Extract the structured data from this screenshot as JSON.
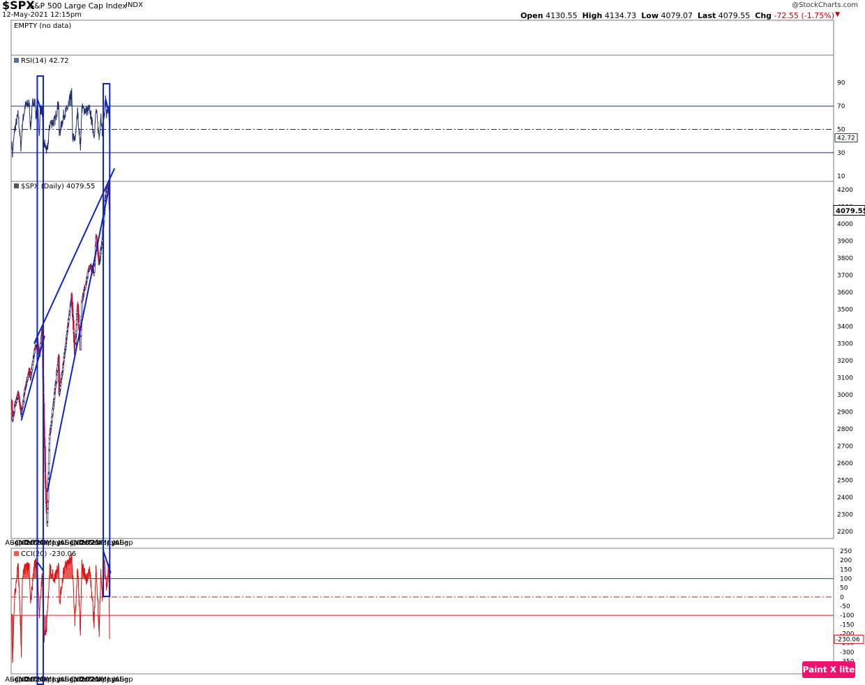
{
  "header": {
    "symbol": "$SPX",
    "description": "S&P 500 Large Cap Index",
    "exchange": "INDX",
    "datetime": "12-May-2021 12:15pm",
    "brand": "@StockCharts.com",
    "quote": {
      "open_label": "Open",
      "open": "4130.55",
      "high_label": "High",
      "high": "4134.73",
      "low_label": "Low",
      "low": "4079.07",
      "last_label": "Last",
      "last": "4079.55",
      "chg_label": "Chg",
      "chg": "-72.55 (-1.75%)"
    }
  },
  "watermark": "Paint X lite",
  "colors": {
    "frame": "#777777",
    "annotation": "#0b24c8",
    "rsi_line": "#1f2f6e",
    "rsi_fill": "#5a6e9e",
    "cci_line": "#dd1111",
    "cci_fill": "#ea5a5a",
    "price_up": "#1a1a70",
    "price_down": "#c8102e"
  },
  "chart_data": [
    {
      "type": "line",
      "panel": "empty",
      "title": "EMPTY (no data)"
    },
    {
      "type": "line",
      "panel": "rsi",
      "title": "RSI(14) 42.72",
      "last_value": "42.72",
      "y_ticks": [
        "90",
        "70",
        "50",
        "30",
        "10"
      ],
      "reference_lines": [
        70,
        50,
        30
      ],
      "ylim": [
        0,
        100
      ],
      "keypoints": [
        {
          "x": "2019-08-01",
          "y": 38
        },
        {
          "x": "2019-08-05",
          "y": 28
        },
        {
          "x": "2019-08-20",
          "y": 50
        },
        {
          "x": "2019-09-12",
          "y": 63
        },
        {
          "x": "2019-10-01",
          "y": 34
        },
        {
          "x": "2019-10-10",
          "y": 55
        },
        {
          "x": "2019-10-28",
          "y": 70
        },
        {
          "x": "2019-11-25",
          "y": 72
        },
        {
          "x": "2019-12-03",
          "y": 52
        },
        {
          "x": "2019-12-20",
          "y": 75
        },
        {
          "x": "2020-01-02",
          "y": 74
        },
        {
          "x": "2020-01-08",
          "y": 60
        },
        {
          "x": "2020-01-17",
          "y": 76
        },
        {
          "x": "2020-01-31",
          "y": 45
        },
        {
          "x": "2020-02-06",
          "y": 68
        },
        {
          "x": "2020-02-19",
          "y": 66
        },
        {
          "x": "2020-02-25",
          "y": 30
        },
        {
          "x": "2020-03-05",
          "y": 38
        },
        {
          "x": "2020-03-23",
          "y": 30
        },
        {
          "x": "2020-04-10",
          "y": 55
        },
        {
          "x": "2020-05-12",
          "y": 57
        },
        {
          "x": "2020-06-08",
          "y": 74
        },
        {
          "x": "2020-06-11",
          "y": 45
        },
        {
          "x": "2020-07-10",
          "y": 62
        },
        {
          "x": "2020-08-03",
          "y": 67
        },
        {
          "x": "2020-09-02",
          "y": 82
        },
        {
          "x": "2020-09-08",
          "y": 44
        },
        {
          "x": "2020-09-23",
          "y": 40
        },
        {
          "x": "2020-10-12",
          "y": 65
        },
        {
          "x": "2020-10-30",
          "y": 35
        },
        {
          "x": "2020-11-09",
          "y": 68
        },
        {
          "x": "2020-12-08",
          "y": 66
        },
        {
          "x": "2020-12-31",
          "y": 67
        },
        {
          "x": "2021-01-29",
          "y": 45
        },
        {
          "x": "2021-02-12",
          "y": 67
        },
        {
          "x": "2021-03-04",
          "y": 42
        },
        {
          "x": "2021-03-15",
          "y": 64
        },
        {
          "x": "2021-03-25",
          "y": 47
        },
        {
          "x": "2021-04-16",
          "y": 76
        },
        {
          "x": "2021-04-22",
          "y": 62
        },
        {
          "x": "2021-05-07",
          "y": 66
        },
        {
          "x": "2021-05-12",
          "y": 42.72
        }
      ]
    },
    {
      "type": "candlestick",
      "panel": "price",
      "title": "$SPX (Daily) 4079.55",
      "last_value": "4079.55",
      "y_ticks": [
        "4200",
        "4100",
        "4000",
        "3900",
        "3800",
        "3700",
        "3600",
        "3500",
        "3400",
        "3300",
        "3200",
        "3100",
        "3000",
        "2900",
        "2800",
        "2700",
        "2600",
        "2500",
        "2400",
        "2300",
        "2200"
      ],
      "ylim": [
        2150,
        4260
      ],
      "keypoints": [
        {
          "x": "2019-08-01",
          "y": 2950
        },
        {
          "x": "2019-08-05",
          "y": 2845
        },
        {
          "x": "2019-08-20",
          "y": 2930
        },
        {
          "x": "2019-09-12",
          "y": 3010
        },
        {
          "x": "2019-10-03",
          "y": 2890
        },
        {
          "x": "2019-10-28",
          "y": 3040
        },
        {
          "x": "2019-11-25",
          "y": 3135
        },
        {
          "x": "2019-12-03",
          "y": 3095
        },
        {
          "x": "2019-12-27",
          "y": 3240
        },
        {
          "x": "2020-01-17",
          "y": 3330
        },
        {
          "x": "2020-01-31",
          "y": 3225
        },
        {
          "x": "2020-02-19",
          "y": 3386
        },
        {
          "x": "2020-02-28",
          "y": 2955
        },
        {
          "x": "2020-03-12",
          "y": 2480
        },
        {
          "x": "2020-03-23",
          "y": 2237
        },
        {
          "x": "2020-04-08",
          "y": 2750
        },
        {
          "x": "2020-04-30",
          "y": 2912
        },
        {
          "x": "2020-06-08",
          "y": 3232
        },
        {
          "x": "2020-06-11",
          "y": 3002
        },
        {
          "x": "2020-07-22",
          "y": 3276
        },
        {
          "x": "2020-09-02",
          "y": 3580
        },
        {
          "x": "2020-09-23",
          "y": 3237
        },
        {
          "x": "2020-10-12",
          "y": 3534
        },
        {
          "x": "2020-10-30",
          "y": 3270
        },
        {
          "x": "2020-11-09",
          "y": 3550
        },
        {
          "x": "2020-12-31",
          "y": 3756
        },
        {
          "x": "2021-01-29",
          "y": 3714
        },
        {
          "x": "2021-02-12",
          "y": 3934
        },
        {
          "x": "2021-03-04",
          "y": 3768
        },
        {
          "x": "2021-03-25",
          "y": 3909
        },
        {
          "x": "2021-04-16",
          "y": 4185
        },
        {
          "x": "2021-05-07",
          "y": 4232
        },
        {
          "x": "2021-05-12",
          "y": 4079.55
        }
      ]
    },
    {
      "type": "area",
      "panel": "cci",
      "title": "CCI(20) -230.06",
      "last_value": "-230.06",
      "y_ticks": [
        "250",
        "200",
        "150",
        "100",
        "50",
        "0",
        "-50",
        "-100",
        "-150",
        "-200",
        "-250",
        "-300",
        "-350"
      ],
      "reference_lines": [
        100,
        0,
        -100
      ],
      "ylim": [
        -380,
        265
      ],
      "keypoints": [
        {
          "x": "2019-08-01",
          "y": -100
        },
        {
          "x": "2019-08-05",
          "y": -355
        },
        {
          "x": "2019-08-20",
          "y": 0
        },
        {
          "x": "2019-09-12",
          "y": 180
        },
        {
          "x": "2019-10-03",
          "y": -300
        },
        {
          "x": "2019-10-10",
          "y": 100
        },
        {
          "x": "2019-10-28",
          "y": 160
        },
        {
          "x": "2019-11-25",
          "y": 160
        },
        {
          "x": "2019-12-03",
          "y": -50
        },
        {
          "x": "2019-12-27",
          "y": 170
        },
        {
          "x": "2020-01-17",
          "y": 190
        },
        {
          "x": "2020-01-31",
          "y": -90
        },
        {
          "x": "2020-02-19",
          "y": 135
        },
        {
          "x": "2020-02-27",
          "y": -240
        },
        {
          "x": "2020-03-20",
          "y": -150
        },
        {
          "x": "2020-04-10",
          "y": 150
        },
        {
          "x": "2020-05-12",
          "y": 100
        },
        {
          "x": "2020-06-08",
          "y": 190
        },
        {
          "x": "2020-06-12",
          "y": -50
        },
        {
          "x": "2020-07-10",
          "y": 150
        },
        {
          "x": "2020-09-02",
          "y": 220
        },
        {
          "x": "2020-09-24",
          "y": -140
        },
        {
          "x": "2020-10-12",
          "y": 170
        },
        {
          "x": "2020-10-30",
          "y": -200
        },
        {
          "x": "2020-11-09",
          "y": 170
        },
        {
          "x": "2020-12-08",
          "y": 100
        },
        {
          "x": "2020-12-31",
          "y": 150
        },
        {
          "x": "2021-01-29",
          "y": -140
        },
        {
          "x": "2021-02-12",
          "y": 180
        },
        {
          "x": "2021-03-04",
          "y": -210
        },
        {
          "x": "2021-03-15",
          "y": 150
        },
        {
          "x": "2021-03-25",
          "y": -20
        },
        {
          "x": "2021-04-01",
          "y": 250
        },
        {
          "x": "2021-04-22",
          "y": 50
        },
        {
          "x": "2021-05-07",
          "y": 175
        },
        {
          "x": "2021-05-12",
          "y": -230.06
        }
      ]
    }
  ],
  "x_axis": {
    "labels": [
      {
        "date": "2019-08-01",
        "text": "Aug",
        "bold": false
      },
      {
        "date": "2019-09-01",
        "text": "Sep",
        "bold": false
      },
      {
        "date": "2019-10-01",
        "text": "Oct",
        "bold": false
      },
      {
        "date": "2019-11-01",
        "text": "Nov",
        "bold": false
      },
      {
        "date": "2019-12-01",
        "text": "Dec",
        "bold": false
      },
      {
        "date": "2020-01-01",
        "text": "2020",
        "bold": true
      },
      {
        "date": "2020-02-01",
        "text": "Feb",
        "bold": false
      },
      {
        "date": "2020-03-01",
        "text": "Mar",
        "bold": false
      },
      {
        "date": "2020-04-01",
        "text": "Apr",
        "bold": false
      },
      {
        "date": "2020-05-01",
        "text": "May",
        "bold": false
      },
      {
        "date": "2020-06-01",
        "text": "Jun",
        "bold": false
      },
      {
        "date": "2020-07-01",
        "text": "Jul",
        "bold": false
      },
      {
        "date": "2020-08-01",
        "text": "Aug",
        "bold": false
      },
      {
        "date": "2020-09-01",
        "text": "Sep",
        "bold": false
      },
      {
        "date": "2020-10-01",
        "text": "Oct",
        "bold": false
      },
      {
        "date": "2020-11-01",
        "text": "Nov",
        "bold": false
      },
      {
        "date": "2020-12-01",
        "text": "Dec",
        "bold": false
      },
      {
        "date": "2021-01-01",
        "text": "2021",
        "bold": true
      },
      {
        "date": "2021-02-01",
        "text": "Feb",
        "bold": false
      },
      {
        "date": "2021-03-01",
        "text": "Mar",
        "bold": false
      },
      {
        "date": "2021-04-01",
        "text": "Apr",
        "bold": false
      },
      {
        "date": "2021-05-01",
        "text": "May",
        "bold": false
      },
      {
        "date": "2021-06-01",
        "text": "Jun",
        "bold": false
      },
      {
        "date": "2021-07-01",
        "text": "Jul",
        "bold": false
      },
      {
        "date": "2021-08-01",
        "text": "Aug",
        "bold": false
      },
      {
        "date": "2021-09-01",
        "text": "Sep",
        "bold": false
      }
    ]
  },
  "annotations": {
    "trendlines_price": [
      {
        "from": {
          "x": "2019-10-03",
          "y": 2850
        },
        "to": {
          "x": "2020-03-06",
          "y": 3345
        }
      },
      {
        "from": {
          "x": "2019-12-27",
          "y": 3300
        },
        "to": {
          "x": "2021-06-14",
          "y": 4325
        }
      },
      {
        "from": {
          "x": "2020-03-24",
          "y": 2432
        },
        "to": {
          "x": "2021-05-13",
          "y": 4233
        }
      }
    ],
    "highlight_boxes": [
      {
        "from": "2020-01-17",
        "to": "2020-02-26"
      },
      {
        "from": "2021-03-31",
        "to": "2021-05-13"
      }
    ],
    "trendlines_rsi": [
      {
        "from": {
          "x": "2020-01-18",
          "y": 76
        },
        "to": {
          "x": "2020-02-24",
          "y": 62
        }
      },
      {
        "from": {
          "x": "2021-04-16",
          "y": 76
        },
        "to": {
          "x": "2021-05-12",
          "y": 62
        }
      }
    ],
    "trendlines_cci": [
      {
        "from": {
          "x": "2020-01-18",
          "y": 190
        },
        "to": {
          "x": "2020-02-24",
          "y": 145
        }
      },
      {
        "from": {
          "x": "2021-04-01",
          "y": 250
        },
        "to": {
          "x": "2021-05-20",
          "y": 130
        }
      }
    ]
  }
}
